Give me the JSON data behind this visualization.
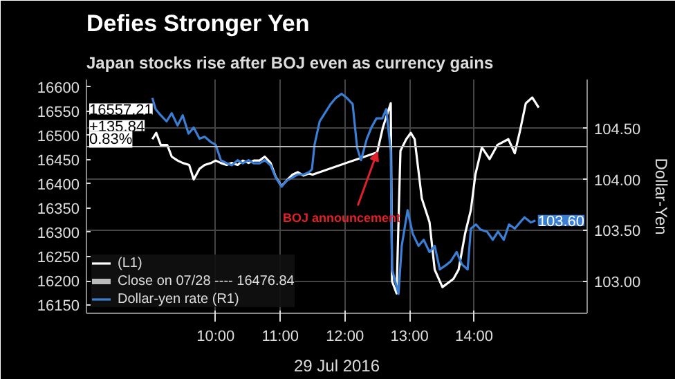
{
  "chart_data": {
    "type": "line",
    "title": "Defies Stronger Yen",
    "subtitle": "Japan stocks rise after BOJ even as currency gains",
    "xlabel": "29 Jul 2016",
    "y2label": "Dollar-Yen",
    "xlim": [
      8.0,
      15.75
    ],
    "xticks": [
      {
        "value": 10,
        "label": "10:00"
      },
      {
        "value": 11,
        "label": "11:00"
      },
      {
        "value": 12,
        "label": "12:00"
      },
      {
        "value": 13,
        "label": "13:00"
      },
      {
        "value": 14,
        "label": "14:00"
      }
    ],
    "ylim": [
      16133,
      16615
    ],
    "yticks": [
      16150,
      16200,
      16250,
      16300,
      16350,
      16400,
      16450,
      16500,
      16550,
      16600
    ],
    "y2lim": [
      102.69,
      104.98
    ],
    "y2ticks": [
      {
        "value": 103,
        "label": "103.00"
      },
      {
        "value": 103.5,
        "label": "103.50"
      },
      {
        "value": 104,
        "label": "104.00"
      },
      {
        "value": 104.5,
        "label": "104.50"
      }
    ],
    "grid": true,
    "legend": "bottom left",
    "series": [
      {
        "name": "(L1)",
        "color": "#ffffff",
        "x": [
          9.02,
          9.08,
          9.15,
          9.25,
          9.32,
          9.41,
          9.49,
          9.59,
          9.66,
          9.75,
          9.83,
          9.93,
          10.0,
          10.08,
          10.17,
          10.25,
          10.34,
          10.42,
          10.51,
          10.59,
          10.68,
          10.76,
          10.85,
          10.93,
          11.02,
          11.1,
          11.19,
          11.27,
          11.36,
          11.44,
          11.5,
          12.5,
          12.59,
          12.66,
          12.71,
          12.73,
          12.8,
          12.86,
          12.95,
          13.02,
          13.08,
          13.19,
          13.31,
          13.39,
          13.51,
          13.68,
          13.76,
          13.86,
          13.95,
          14.02,
          14.12,
          14.24,
          14.36,
          14.53,
          14.63,
          14.71,
          14.8,
          14.9,
          15.0
        ],
        "values": [
          16492,
          16505,
          16480,
          16480,
          16456,
          16448,
          16443,
          16439,
          16409,
          16431,
          16439,
          16443,
          16448,
          16443,
          16439,
          16443,
          16439,
          16448,
          16443,
          16448,
          16448,
          16456,
          16443,
          16414,
          16395,
          16407,
          16419,
          16424,
          16417,
          16421,
          16419,
          16465,
          16517,
          16546,
          16566,
          16199,
          16174,
          16468,
          16492,
          16505,
          16492,
          16370,
          16321,
          16223,
          16187,
          16204,
          16223,
          16297,
          16346,
          16419,
          16475,
          16451,
          16480,
          16492,
          16463,
          16509,
          16566,
          16578,
          16557.21
        ]
      },
      {
        "name": "Dollar-yen rate (R1)",
        "color": "#3a7fd5",
        "axis": "y2",
        "x": [
          9.02,
          9.07,
          9.15,
          9.24,
          9.32,
          9.41,
          9.49,
          9.58,
          9.66,
          9.75,
          9.83,
          9.92,
          10.0,
          10.08,
          10.17,
          10.25,
          10.34,
          10.42,
          10.51,
          10.59,
          10.68,
          10.76,
          10.85,
          10.93,
          11.02,
          11.1,
          11.19,
          11.27,
          11.36,
          11.44,
          11.49,
          11.53,
          11.61,
          11.69,
          11.78,
          11.86,
          11.95,
          12.03,
          12.12,
          12.19,
          12.25,
          12.34,
          12.41,
          12.49,
          12.58,
          12.64,
          12.71,
          12.73,
          12.78,
          12.83,
          12.88,
          12.97,
          13.05,
          13.14,
          13.22,
          13.31,
          13.39,
          13.47,
          13.56,
          13.64,
          13.73,
          13.81,
          13.9,
          13.95,
          14.03,
          14.1,
          14.2,
          14.29,
          14.37,
          14.46,
          14.54,
          14.63,
          14.71,
          14.78,
          14.88,
          14.95
        ],
        "values": [
          104.8,
          104.69,
          104.63,
          104.57,
          104.65,
          104.53,
          104.63,
          104.45,
          104.51,
          104.4,
          104.42,
          104.37,
          104.34,
          104.19,
          104.16,
          104.14,
          104.19,
          104.16,
          104.19,
          104.16,
          104.16,
          104.19,
          104.14,
          104.02,
          103.93,
          103.99,
          104.02,
          104.05,
          104.05,
          104.07,
          104.1,
          104.34,
          104.57,
          104.65,
          104.74,
          104.8,
          104.84,
          104.8,
          104.74,
          104.31,
          104.19,
          104.4,
          104.51,
          104.6,
          104.6,
          104.69,
          104.28,
          103.12,
          103.0,
          102.88,
          103.35,
          103.7,
          103.47,
          103.35,
          103.41,
          103.29,
          103.35,
          103.12,
          103.16,
          103.2,
          103.29,
          103.17,
          103.12,
          103.52,
          103.56,
          103.51,
          103.49,
          103.41,
          103.49,
          103.41,
          103.56,
          103.52,
          103.58,
          103.63,
          103.58,
          103.6
        ]
      }
    ],
    "ref_lines": [
      {
        "axis": "y",
        "value": 16476.84,
        "label": "Close on 07/28 ---- 16476.84",
        "color": "#bbbbbb"
      }
    ],
    "annotations": [
      {
        "text": "BOJ announcement",
        "x": 12.5,
        "y": 16465
      },
      "16557.21",
      "+135.84",
      "0.83%",
      "103.60"
    ]
  }
}
